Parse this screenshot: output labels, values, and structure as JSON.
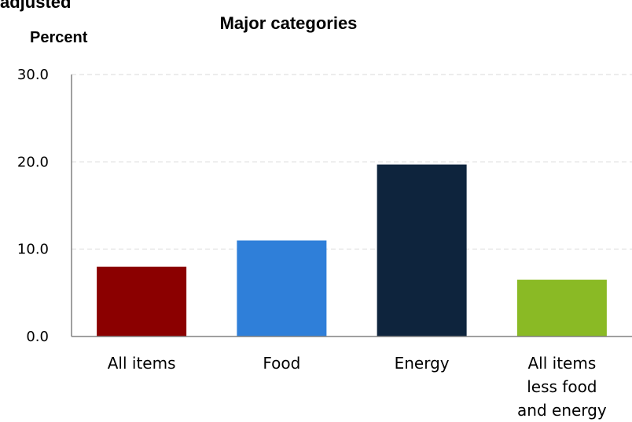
{
  "header": {
    "partial_title": "adjusted",
    "chart_title": "Major categories",
    "y_unit": "Percent"
  },
  "colors": {
    "bar_all_items": "#8b0000",
    "bar_food": "#2f7fd9",
    "bar_energy": "#0e243d",
    "bar_core": "#8aba25",
    "grid": "#d9d9d9",
    "axis": "#808080"
  },
  "chart_data": {
    "type": "bar",
    "title": "Major categories",
    "ylabel": "Percent",
    "xlabel": "",
    "categories": [
      [
        "All items"
      ],
      [
        "Food"
      ],
      [
        "Energy"
      ],
      [
        "All items",
        "less food",
        "and energy"
      ]
    ],
    "values": [
      8.0,
      11.0,
      19.7,
      6.5
    ],
    "ylim": [
      0,
      30
    ],
    "yticks": [
      "0.0",
      "10.0",
      "20.0",
      "30.0"
    ],
    "grid": true,
    "grid_style": "dashed"
  }
}
